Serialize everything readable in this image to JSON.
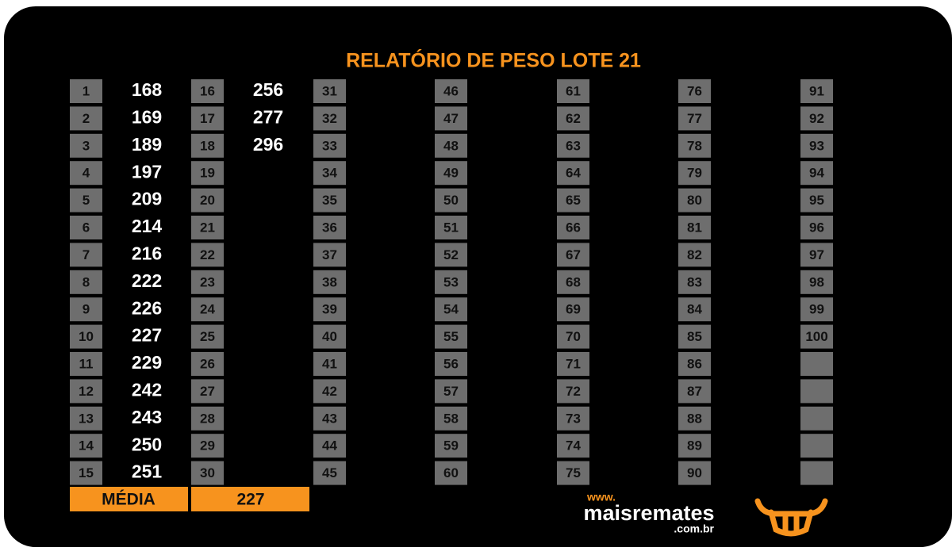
{
  "header": {
    "title": "RELATÓRIO DE PESO LOTE  21"
  },
  "table": {
    "columns": [
      {
        "numbers": [
          1,
          2,
          3,
          4,
          5,
          6,
          7,
          8,
          9,
          10,
          11,
          12,
          13,
          14,
          15
        ],
        "weights": [
          168,
          169,
          189,
          197,
          209,
          214,
          216,
          222,
          226,
          227,
          229,
          242,
          243,
          250,
          251
        ]
      },
      {
        "numbers": [
          16,
          17,
          18,
          19,
          20,
          21,
          22,
          23,
          24,
          25,
          26,
          27,
          28,
          29,
          30
        ],
        "weights": [
          256,
          277,
          296
        ]
      },
      {
        "numbers": [
          31,
          32,
          33,
          34,
          35,
          36,
          37,
          38,
          39,
          40,
          41,
          42,
          43,
          44,
          45
        ],
        "weights": []
      },
      {
        "numbers": [
          46,
          47,
          48,
          49,
          50,
          51,
          52,
          53,
          54,
          55,
          56,
          57,
          58,
          59,
          60
        ],
        "weights": []
      },
      {
        "numbers": [
          61,
          62,
          63,
          64,
          65,
          66,
          67,
          68,
          69,
          70,
          71,
          72,
          73,
          74,
          75
        ],
        "weights": []
      },
      {
        "numbers": [
          76,
          77,
          78,
          79,
          80,
          81,
          82,
          83,
          84,
          85,
          86,
          87,
          88,
          89,
          90
        ],
        "weights": []
      },
      {
        "numbers": [
          91,
          92,
          93,
          94,
          95,
          96,
          97,
          98,
          99,
          100
        ],
        "weights": []
      }
    ]
  },
  "footer": {
    "average_label": "MÉDIA",
    "average_value": 227
  },
  "logo": {
    "prefix": "www.",
    "name": "maisremates",
    "suffix": ".com.br"
  }
}
